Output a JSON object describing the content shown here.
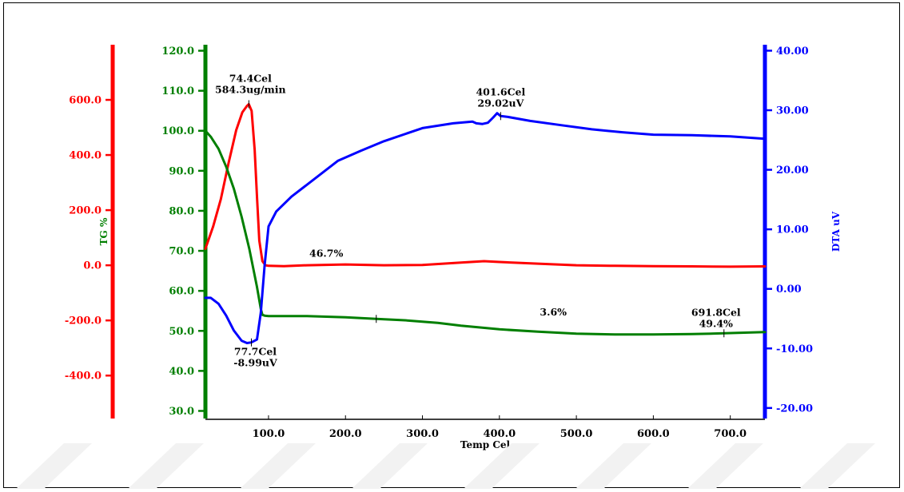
{
  "chart_data": {
    "type": "line",
    "xlabel": "Temp Cel",
    "xlim": [
      18,
      745
    ],
    "xticks": [
      100,
      200,
      300,
      400,
      500,
      600,
      700
    ],
    "xtick_labels": [
      "100.0",
      "200.0",
      "300.0",
      "400.0",
      "500.0",
      "600.0",
      "700.0"
    ],
    "colors": {
      "dtg": "#ff0000",
      "tg": "#007f00",
      "dta": "#0000ff"
    },
    "axes": {
      "dtg": {
        "label": "",
        "range": [
          -550,
          800
        ],
        "ticks": [
          600,
          400,
          200,
          0,
          -200,
          -400
        ],
        "tick_labels": [
          "600.0",
          "400.0",
          "200.0",
          "0.0",
          "-200.0",
          "-400.0"
        ]
      },
      "tg": {
        "label": "TG %",
        "range": [
          28.5,
          121.5
        ],
        "ticks": [
          120,
          110,
          100,
          90,
          80,
          70,
          60,
          50,
          40,
          30
        ],
        "tick_labels": [
          "120.0",
          "110.0",
          "100.0",
          "90.0",
          "80.0",
          "70.0",
          "60.0",
          "50.0",
          "40.0",
          "30.0"
        ]
      },
      "dta": {
        "label": "DTA uV",
        "range": [
          -21.5,
          41
        ],
        "ticks": [
          40,
          30,
          20,
          10,
          0,
          -10,
          -20
        ],
        "tick_labels": [
          "40.00",
          "30.00",
          "20.00",
          "10.00",
          "0.00",
          "-10.00",
          "-20.00"
        ]
      }
    },
    "series": [
      {
        "key": "dtg",
        "axis": "dtg",
        "x": [
          18,
          28,
          38,
          48,
          58,
          66,
          72,
          74.4,
          78,
          82,
          85,
          88,
          92,
          96,
          100,
          120,
          150,
          200,
          250,
          300,
          350,
          380,
          400,
          450,
          500,
          550,
          600,
          650,
          700,
          745
        ],
        "y": [
          60,
          140,
          240,
          370,
          490,
          555,
          578,
          584.3,
          560,
          420,
          250,
          90,
          15,
          0,
          -2,
          -3,
          0,
          3,
          0,
          1,
          10,
          15,
          12,
          6,
          0,
          -2,
          -3,
          -4,
          -5,
          -4
        ]
      },
      {
        "key": "tg",
        "axis": "tg",
        "x": [
          18,
          25,
          35,
          45,
          55,
          65,
          75,
          85,
          90,
          92,
          95,
          100,
          150,
          200,
          240,
          280,
          320,
          350,
          400,
          450,
          500,
          550,
          600,
          650,
          691.8,
          745
        ],
        "y": [
          100,
          98.5,
          95.5,
          91,
          85.5,
          78.5,
          70.5,
          61,
          55.5,
          54,
          53.8,
          53.7,
          53.7,
          53.4,
          53,
          52.6,
          52,
          51.3,
          50.4,
          49.8,
          49.3,
          49.1,
          49.1,
          49.2,
          49.4,
          49.7
        ]
      },
      {
        "key": "dta",
        "axis": "dta",
        "x": [
          18,
          25,
          35,
          45,
          55,
          65,
          72,
          77.7,
          85,
          90,
          95,
          100,
          110,
          130,
          160,
          190,
          220,
          250,
          300,
          340,
          365,
          370,
          378,
          385,
          392,
          397,
          401.6,
          410,
          440,
          480,
          520,
          560,
          600,
          650,
          700,
          745
        ],
        "y": [
          -1.5,
          -1.5,
          -2.5,
          -4.5,
          -7,
          -8.7,
          -9.1,
          -8.99,
          -8.5,
          -4,
          4,
          10.5,
          13,
          15.5,
          18.5,
          21.5,
          23.2,
          24.8,
          27,
          27.8,
          28.1,
          27.8,
          27.7,
          27.9,
          28.8,
          29.5,
          29.02,
          28.9,
          28.2,
          27.5,
          26.8,
          26.3,
          25.9,
          25.8,
          25.6,
          25.2
        ]
      }
    ],
    "annotations": [
      {
        "text": [
          "74.4Cel",
          "584.3ug/min"
        ],
        "x": 74.4,
        "axis": "dtg",
        "y": 584.3,
        "marker": true
      },
      {
        "text": [
          "401.6Cel",
          "29.02uV"
        ],
        "x": 401.6,
        "axis": "dta",
        "y": 29.02,
        "marker": true
      },
      {
        "text": [
          "77.7Cel",
          "-8.99uV"
        ],
        "x": 77.7,
        "axis": "dta",
        "y": -8.99,
        "marker": true
      },
      {
        "text": [
          "46.7%"
        ],
        "x": 175,
        "axis": "tg",
        "y": 68.5,
        "marker": false
      },
      {
        "text": [
          "3.6%"
        ],
        "x": 470,
        "axis": "tg",
        "y": 54.2,
        "marker": false
      },
      {
        "text": [
          "691.8Cel",
          "49.4%"
        ],
        "x": 691.8,
        "axis": "tg",
        "y": 49.4,
        "marker": true
      }
    ],
    "tg_step_marker": {
      "x": 240,
      "y": 53
    }
  }
}
